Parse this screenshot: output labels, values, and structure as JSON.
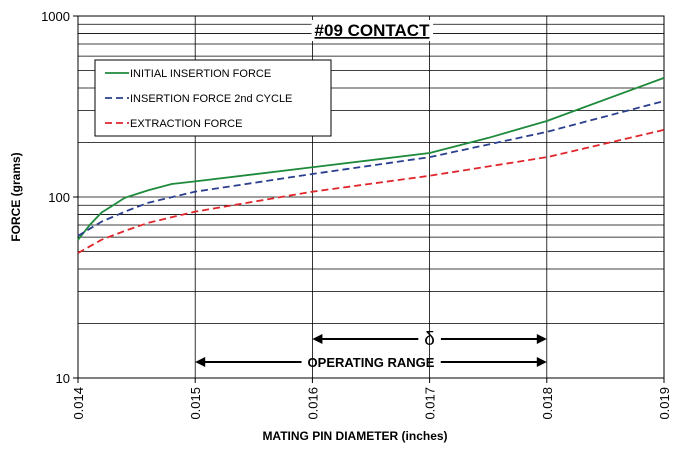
{
  "chart_data": {
    "type": "line",
    "title": "#09 CONTACT",
    "x_label": "MATING PIN  DIAMETER (inches)",
    "y_label": "FORCE (grams)",
    "xlim": [
      0.014,
      0.019
    ],
    "xticks": [
      0.014,
      0.015,
      0.016,
      0.017,
      0.018,
      0.019
    ],
    "ylim": [
      10,
      1000
    ],
    "yticks": [
      10,
      100,
      1000
    ],
    "yminorticks": [
      20,
      30,
      40,
      50,
      60,
      70,
      80,
      90,
      200,
      300,
      400,
      500,
      600,
      700,
      800,
      900
    ],
    "log_y": true,
    "grid": true,
    "legend": "upper left",
    "series": [
      {
        "name": "INITIAL INSERTION FORCE",
        "color": "#1e8a3c",
        "dash": "solid",
        "x": [
          0.014,
          0.0141,
          0.0142,
          0.0143,
          0.0144,
          0.0146,
          0.0148,
          0.015,
          0.016,
          0.017,
          0.0175,
          0.018,
          0.019
        ],
        "values": [
          58,
          70,
          82,
          90,
          99,
          109,
          118,
          122,
          146,
          175,
          212,
          263,
          455
        ]
      },
      {
        "name": "INSERTION FORCE 2nd CYCLE",
        "color": "#2b3f8f",
        "dash": "dashed",
        "x": [
          0.014,
          0.0142,
          0.0144,
          0.0146,
          0.015,
          0.016,
          0.017,
          0.018,
          0.019
        ],
        "values": [
          61,
          73,
          83,
          93,
          107,
          134,
          166,
          229,
          339
        ]
      },
      {
        "name": "EXTRACTION FORCE",
        "color": "#e0262b",
        "dash": "dashed",
        "x": [
          0.014,
          0.0142,
          0.0144,
          0.0146,
          0.015,
          0.016,
          0.017,
          0.018,
          0.019
        ],
        "values": [
          49,
          58,
          65,
          72,
          83,
          107,
          131,
          166,
          235
        ]
      }
    ],
    "annotations": [
      {
        "text": "δ",
        "range": [
          0.016,
          0.018
        ]
      },
      {
        "text": "OPERATING RANGE",
        "range": [
          0.015,
          0.018
        ]
      }
    ]
  }
}
